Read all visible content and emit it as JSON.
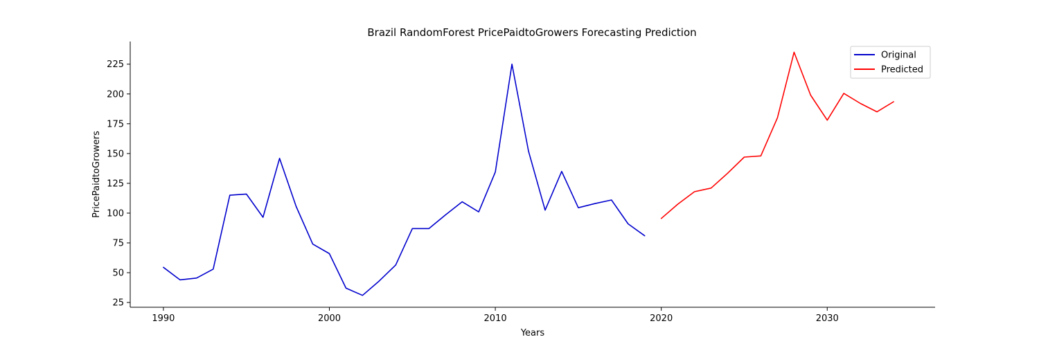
{
  "chart_data": {
    "type": "line",
    "title": "Brazil RandomForest PricePaidtoGrowers Forecasting Prediction",
    "xlabel": "Years",
    "ylabel": "PricePaidtoGrowers",
    "xlim": [
      1988,
      2036.5
    ],
    "ylim": [
      21,
      244
    ],
    "xticks": [
      1990,
      2000,
      2010,
      2020,
      2030
    ],
    "yticks": [
      25,
      50,
      75,
      100,
      125,
      150,
      175,
      200,
      225
    ],
    "grid": false,
    "legend_position": "top-right",
    "series": [
      {
        "name": "Original",
        "color": "#0000cd",
        "x": [
          1990,
          1991,
          1992,
          1993,
          1994,
          1995,
          1996,
          1997,
          1998,
          1999,
          2000,
          2001,
          2002,
          2003,
          2004,
          2005,
          2006,
          2007,
          2008,
          2009,
          2010,
          2011,
          2012,
          2013,
          2014,
          2015,
          2016,
          2017,
          2018,
          2019
        ],
        "values": [
          54.5,
          44,
          45.5,
          53,
          115,
          116,
          96.5,
          146,
          105.5,
          74,
          66,
          37,
          31,
          43,
          56.5,
          87,
          87,
          98.5,
          109.5,
          101,
          134.5,
          225,
          152,
          102.5,
          135,
          104.5,
          108,
          111,
          91,
          81
        ]
      },
      {
        "name": "Predicted",
        "color": "#ff0000",
        "x": [
          2020,
          2021,
          2022,
          2023,
          2024,
          2025,
          2026,
          2027,
          2028,
          2029,
          2030,
          2031,
          2032,
          2033,
          2034
        ],
        "values": [
          95.5,
          107.5,
          118,
          121,
          133.5,
          147,
          148,
          180,
          235,
          199,
          178,
          200.5,
          192,
          185,
          193.5
        ]
      }
    ]
  }
}
